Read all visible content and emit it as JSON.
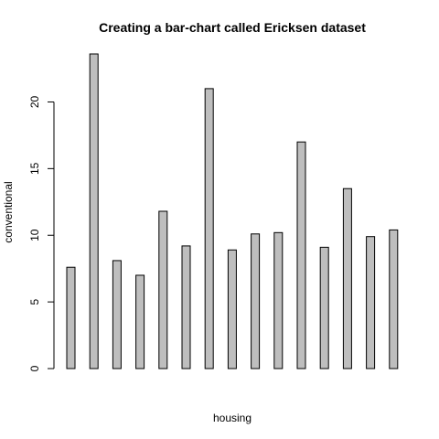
{
  "chart_data": {
    "type": "bar",
    "title": "Creating a bar-chart called Ericksen dataset",
    "xlabel": "housing",
    "ylabel": "conventional",
    "ylim": [
      0,
      23.6
    ],
    "y_ticks": [
      "0",
      "5",
      "10",
      "15",
      "20"
    ],
    "values": [
      7.6,
      23.6,
      8.1,
      7.0,
      11.8,
      9.2,
      21.0,
      8.9,
      10.1,
      10.2,
      17.0,
      9.1,
      13.5,
      9.9,
      10.4
    ],
    "bar_color": "#bebebe",
    "border_color": "#000000",
    "grid": false
  }
}
